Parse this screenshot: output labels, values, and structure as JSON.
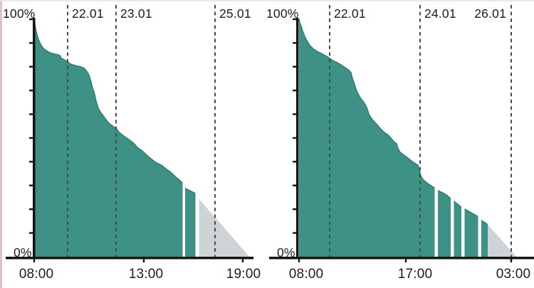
{
  "page": {
    "background": "#ffffff",
    "description": "Two battery-level history area charts side by side with day-boundary markers and discharge forecast"
  },
  "colors": {
    "background": "#ffffff",
    "series_fill": "#3e9285",
    "series_edge": "#2f8174",
    "forecast_fill": "#cdd3d6",
    "dash_line": "#4a4a4a",
    "axis": "#141414",
    "text": "#1c1c1c",
    "left_border": "#d8c6c6"
  },
  "chart_data": [
    {
      "type": "area",
      "name": "battery-history-chart-left",
      "title": "",
      "ylim": [
        0,
        100
      ],
      "y_top_label": "100%",
      "y_top_label_x": 4,
      "y_bottom_label": "0%",
      "y_bottom_label_x": 19,
      "plot": {
        "axis_x": 48,
        "x_end": 356,
        "top_y": 25,
        "base_y": 359,
        "baseline_start_x": 8
      },
      "day_markers": [
        {
          "label": "22.01",
          "x": 95,
          "label_side": "right"
        },
        {
          "label": "23.01",
          "x": 163,
          "label_side": "right"
        },
        {
          "label": "25.01",
          "x": 302,
          "label_side": "right"
        }
      ],
      "x_ticks": [
        {
          "label": "08:00",
          "label_x": 51,
          "tick_x": 48
        },
        {
          "label": "13:00",
          "label_x": 205,
          "tick_x": 202
        },
        {
          "label": "19:00",
          "label_x": 342,
          "tick_x": 341
        }
      ],
      "series": {
        "name": "battery-level-percent",
        "color": "#3e9285",
        "edge_color": "#2f8174",
        "points": [
          [
            48,
            100
          ],
          [
            49,
            98
          ],
          [
            50,
            96
          ],
          [
            52,
            93.5
          ],
          [
            54,
            91.5
          ],
          [
            57,
            89.5
          ],
          [
            60,
            88
          ],
          [
            64,
            87
          ],
          [
            68,
            86.2
          ],
          [
            73,
            85.6
          ],
          [
            79,
            85.2
          ],
          [
            84,
            84.8
          ],
          [
            86,
            83.6
          ],
          [
            90,
            83
          ],
          [
            95,
            82
          ],
          [
            100,
            81
          ],
          [
            107,
            80.4
          ],
          [
            113,
            80
          ],
          [
            118,
            79.4
          ],
          [
            122,
            78
          ],
          [
            125,
            76.5
          ],
          [
            128,
            73.5
          ],
          [
            130,
            71
          ],
          [
            132,
            69.5
          ],
          [
            135,
            65.5
          ],
          [
            138,
            62.5
          ],
          [
            142,
            60.5
          ],
          [
            147,
            58.5
          ],
          [
            152,
            56.5
          ],
          [
            158,
            55
          ],
          [
            163,
            54
          ],
          [
            167,
            52.5
          ],
          [
            173,
            51
          ],
          [
            180,
            49.5
          ],
          [
            187,
            48
          ],
          [
            193,
            46
          ],
          [
            200,
            44.5
          ],
          [
            207,
            42.5
          ],
          [
            213,
            41
          ],
          [
            220,
            39.5
          ],
          [
            227,
            38.5
          ],
          [
            233,
            37
          ],
          [
            240,
            35.5
          ],
          [
            247,
            33.5
          ],
          [
            253,
            32
          ],
          [
            256,
            31
          ],
          [
            260,
            28.8
          ],
          [
            264,
            28.2
          ],
          [
            268,
            27.6
          ],
          [
            272,
            27
          ],
          [
            275,
            26.5
          ],
          [
            279,
            26
          ]
        ]
      },
      "gaps": [
        [
          256.5,
          260
        ],
        [
          274.5,
          279.5
        ]
      ],
      "forecast": {
        "name": "estimated-discharge",
        "color": "#cdd3d6",
        "points": [
          [
            279.5,
            24.3
          ],
          [
            352,
            0
          ]
        ]
      }
    },
    {
      "type": "area",
      "name": "battery-history-chart-right",
      "title": "",
      "ylim": [
        0,
        100
      ],
      "y_top_label": "100%",
      "y_top_label_x": 374,
      "y_bottom_label": "0%",
      "y_bottom_label_x": 389,
      "plot": {
        "axis_x": 418,
        "x_end": 750,
        "top_y": 25,
        "base_y": 359,
        "baseline_start_x": 378
      },
      "day_markers": [
        {
          "label": "22.01",
          "x": 463,
          "label_side": "right"
        },
        {
          "label": "24.01",
          "x": 590,
          "label_side": "right"
        },
        {
          "label": "26.01",
          "x": 718,
          "label_side": "left"
        }
      ],
      "x_ticks": [
        {
          "label": "08:00",
          "label_x": 430,
          "tick_x": 420
        },
        {
          "label": "17:00",
          "label_x": 583,
          "tick_x": 570
        },
        {
          "label": "03:00",
          "label_x": 721,
          "tick_x": 718
        }
      ],
      "series": {
        "name": "battery-level-percent",
        "color": "#3e9285",
        "edge_color": "#2f8174",
        "points": [
          [
            420,
            100
          ],
          [
            421,
            98.5
          ],
          [
            423,
            97
          ],
          [
            425,
            95
          ],
          [
            427,
            93.5
          ],
          [
            429,
            92
          ],
          [
            432,
            90.5
          ],
          [
            435,
            89
          ],
          [
            440,
            87.5
          ],
          [
            445,
            86.5
          ],
          [
            452,
            85.5
          ],
          [
            458,
            84.5
          ],
          [
            463,
            83.5
          ],
          [
            468,
            82.5
          ],
          [
            475,
            81.5
          ],
          [
            483,
            80
          ],
          [
            490,
            78.5
          ],
          [
            493,
            77.5
          ],
          [
            495,
            75
          ],
          [
            498,
            72.5
          ],
          [
            500,
            70.5
          ],
          [
            503,
            68.5
          ],
          [
            507,
            66.5
          ],
          [
            511,
            65
          ],
          [
            514,
            63.5
          ],
          [
            516,
            62
          ],
          [
            518,
            60
          ],
          [
            521,
            58.5
          ],
          [
            525,
            57
          ],
          [
            530,
            55.5
          ],
          [
            534,
            54
          ],
          [
            539,
            52.5
          ],
          [
            544,
            51.5
          ],
          [
            549,
            50
          ],
          [
            553,
            48.5
          ],
          [
            557,
            47.5
          ],
          [
            559,
            45.5
          ],
          [
            562,
            44
          ],
          [
            566,
            43
          ],
          [
            571,
            42
          ],
          [
            577,
            40.5
          ],
          [
            582,
            39.5
          ],
          [
            587,
            38.5
          ],
          [
            589,
            36.5
          ],
          [
            591,
            34
          ],
          [
            594,
            32.5
          ],
          [
            600,
            31
          ],
          [
            606,
            29.8
          ],
          [
            610,
            29
          ],
          [
            615,
            27.8
          ],
          [
            621,
            27
          ],
          [
            627,
            26
          ],
          [
            633,
            24.5
          ],
          [
            637,
            23.5
          ],
          [
            642,
            22.3
          ],
          [
            648,
            20.8
          ],
          [
            653,
            20
          ],
          [
            659,
            19
          ],
          [
            665,
            18
          ],
          [
            671,
            17
          ],
          [
            676,
            15.3
          ],
          [
            681,
            14.3
          ],
          [
            685,
            13.5
          ]
        ]
      },
      "gaps": [
        [
          610.5,
          615
        ],
        [
          633,
          637.5
        ],
        [
          648,
          652.5
        ],
        [
          671.5,
          676
        ]
      ],
      "forecast": {
        "name": "estimated-discharge",
        "color": "#cdd3d6",
        "points": [
          [
            685,
            13.5
          ],
          [
            727,
            0
          ]
        ]
      }
    }
  ]
}
